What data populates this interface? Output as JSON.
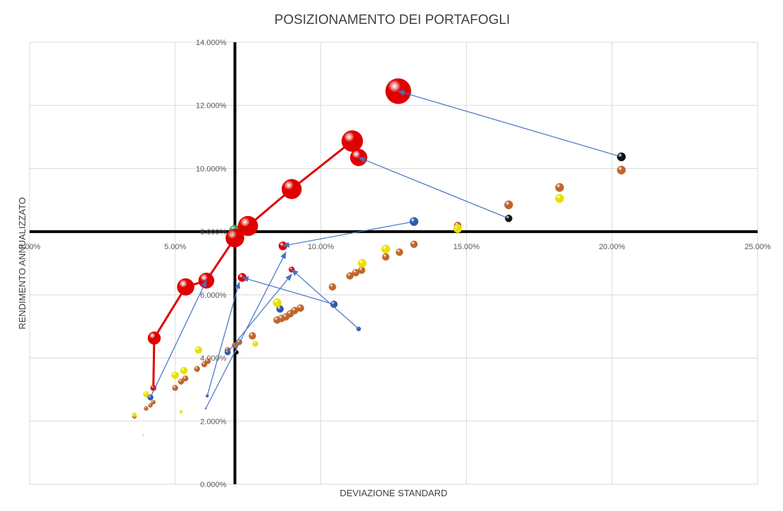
{
  "chart_data": {
    "type": "scatter",
    "title": "POSIZIONAMENTO DEI PORTAFOGLI",
    "xlabel": "DEVIAZIONE STANDARD",
    "ylabel": "RENDIMENTO ANNUALIZZATO",
    "xlim": [
      0,
      0.25
    ],
    "ylim": [
      0,
      0.14
    ],
    "x_ticks": [
      0.0,
      0.05,
      0.1,
      0.15,
      0.2,
      0.25
    ],
    "x_tick_labels": [
      "0.00%",
      "5.00%",
      "10.00%",
      "15.00%",
      "20.00%",
      "25.00%"
    ],
    "y_ticks": [
      0.0,
      0.02,
      0.04,
      0.06,
      0.08,
      0.1,
      0.12,
      0.14
    ],
    "y_tick_labels": [
      "0.000%",
      "2.000%",
      "4.000%",
      "6.000%",
      "8.000%",
      "10.000%",
      "12.000%",
      "14.000%"
    ],
    "reference_lines": {
      "x": 0.0705,
      "y": 0.08
    },
    "grid": true,
    "legend": "none",
    "colors": {
      "red": "#e00000",
      "orange": "#c0662a",
      "yellow": "#e8e000",
      "blue": "#2f5aa8",
      "black": "#111111",
      "green": "#2ea84a",
      "arrow": "#4472c4",
      "frontier_line": "#e00000"
    },
    "series": [
      {
        "color_key": "red",
        "points": [
          {
            "x": 0.0425,
            "y": 0.0305,
            "r": 4
          },
          {
            "x": 0.0428,
            "y": 0.0463,
            "r": 9
          },
          {
            "x": 0.0536,
            "y": 0.0625,
            "r": 12
          },
          {
            "x": 0.0607,
            "y": 0.0645,
            "r": 11
          },
          {
            "x": 0.0705,
            "y": 0.078,
            "r": 13
          },
          {
            "x": 0.075,
            "y": 0.0818,
            "r": 14
          },
          {
            "x": 0.09,
            "y": 0.0935,
            "r": 14
          },
          {
            "x": 0.1108,
            "y": 0.1087,
            "r": 15
          },
          {
            "x": 0.113,
            "y": 0.1035,
            "r": 12
          },
          {
            "x": 0.1266,
            "y": 0.1245,
            "r": 18
          },
          {
            "x": 0.073,
            "y": 0.0655,
            "r": 6
          },
          {
            "x": 0.087,
            "y": 0.0755,
            "r": 6
          },
          {
            "x": 0.09,
            "y": 0.068,
            "r": 4
          }
        ]
      },
      {
        "color_key": "green",
        "points": [
          {
            "x": 0.0705,
            "y": 0.0803,
            "r": 8
          }
        ]
      },
      {
        "color_key": "orange",
        "points": [
          {
            "x": 0.036,
            "y": 0.0215,
            "r": 3
          },
          {
            "x": 0.04,
            "y": 0.024,
            "r": 3
          },
          {
            "x": 0.0415,
            "y": 0.025,
            "r": 3
          },
          {
            "x": 0.0425,
            "y": 0.026,
            "r": 3
          },
          {
            "x": 0.05,
            "y": 0.0305,
            "r": 4
          },
          {
            "x": 0.052,
            "y": 0.0325,
            "r": 4
          },
          {
            "x": 0.0535,
            "y": 0.0335,
            "r": 4
          },
          {
            "x": 0.0575,
            "y": 0.0365,
            "r": 4
          },
          {
            "x": 0.06,
            "y": 0.038,
            "r": 4
          },
          {
            "x": 0.0612,
            "y": 0.039,
            "r": 4
          },
          {
            "x": 0.068,
            "y": 0.0425,
            "r": 4
          },
          {
            "x": 0.0705,
            "y": 0.044,
            "r": 4
          },
          {
            "x": 0.072,
            "y": 0.045,
            "r": 4
          },
          {
            "x": 0.0765,
            "y": 0.047,
            "r": 5
          },
          {
            "x": 0.085,
            "y": 0.052,
            "r": 5
          },
          {
            "x": 0.0865,
            "y": 0.0525,
            "r": 5
          },
          {
            "x": 0.088,
            "y": 0.053,
            "r": 5
          },
          {
            "x": 0.0895,
            "y": 0.054,
            "r": 5
          },
          {
            "x": 0.091,
            "y": 0.055,
            "r": 5
          },
          {
            "x": 0.093,
            "y": 0.0558,
            "r": 5
          },
          {
            "x": 0.104,
            "y": 0.0625,
            "r": 5
          },
          {
            "x": 0.11,
            "y": 0.066,
            "r": 5
          },
          {
            "x": 0.112,
            "y": 0.067,
            "r": 5
          },
          {
            "x": 0.114,
            "y": 0.0678,
            "r": 5
          },
          {
            "x": 0.1223,
            "y": 0.072,
            "r": 5
          },
          {
            "x": 0.127,
            "y": 0.0735,
            "r": 5
          },
          {
            "x": 0.132,
            "y": 0.076,
            "r": 5
          },
          {
            "x": 0.147,
            "y": 0.082,
            "r": 5
          },
          {
            "x": 0.1645,
            "y": 0.0885,
            "r": 6
          },
          {
            "x": 0.182,
            "y": 0.094,
            "r": 6
          },
          {
            "x": 0.2032,
            "y": 0.0995,
            "r": 6
          }
        ]
      },
      {
        "color_key": "yellow",
        "points": [
          {
            "x": 0.036,
            "y": 0.022,
            "r": 3
          },
          {
            "x": 0.039,
            "y": 0.0155,
            "r": 1
          },
          {
            "x": 0.04,
            "y": 0.0285,
            "r": 4
          },
          {
            "x": 0.05,
            "y": 0.0345,
            "r": 5
          },
          {
            "x": 0.052,
            "y": 0.023,
            "r": 2
          },
          {
            "x": 0.053,
            "y": 0.036,
            "r": 5
          },
          {
            "x": 0.058,
            "y": 0.0425,
            "r": 5
          },
          {
            "x": 0.0775,
            "y": 0.0445,
            "r": 4
          },
          {
            "x": 0.085,
            "y": 0.0575,
            "r": 6
          },
          {
            "x": 0.1142,
            "y": 0.07,
            "r": 6
          },
          {
            "x": 0.1223,
            "y": 0.0745,
            "r": 6
          },
          {
            "x": 0.147,
            "y": 0.081,
            "r": 6
          },
          {
            "x": 0.182,
            "y": 0.0905,
            "r": 6
          }
        ]
      },
      {
        "color_key": "blue",
        "points": [
          {
            "x": 0.0415,
            "y": 0.0275,
            "r": 4
          },
          {
            "x": 0.061,
            "y": 0.028,
            "r": 2
          },
          {
            "x": 0.0605,
            "y": 0.024,
            "r": 1
          },
          {
            "x": 0.068,
            "y": 0.0418,
            "r": 4
          },
          {
            "x": 0.086,
            "y": 0.0555,
            "r": 5
          },
          {
            "x": 0.1045,
            "y": 0.057,
            "r": 5
          },
          {
            "x": 0.113,
            "y": 0.0492,
            "r": 3
          },
          {
            "x": 0.132,
            "y": 0.0832,
            "r": 6
          }
        ]
      },
      {
        "color_key": "black",
        "points": [
          {
            "x": 0.071,
            "y": 0.0418,
            "r": 3
          },
          {
            "x": 0.1645,
            "y": 0.0842,
            "r": 5
          },
          {
            "x": 0.2032,
            "y": 0.1037,
            "r": 6
          }
        ]
      }
    ],
    "frontier_line": [
      {
        "x": 0.0425,
        "y": 0.0305
      },
      {
        "x": 0.0428,
        "y": 0.0463
      },
      {
        "x": 0.0536,
        "y": 0.0625
      },
      {
        "x": 0.0607,
        "y": 0.0645
      },
      {
        "x": 0.0705,
        "y": 0.078
      },
      {
        "x": 0.075,
        "y": 0.0818
      },
      {
        "x": 0.09,
        "y": 0.0935
      },
      {
        "x": 0.1108,
        "y": 0.1087
      }
    ],
    "arrows": [
      {
        "from": [
          0.2032,
          0.1037
        ],
        "to": [
          0.1266,
          0.1245
        ]
      },
      {
        "from": [
          0.1645,
          0.0842
        ],
        "to": [
          0.113,
          0.1035
        ]
      },
      {
        "from": [
          0.132,
          0.0832
        ],
        "to": [
          0.087,
          0.0755
        ]
      },
      {
        "from": [
          0.1045,
          0.057
        ],
        "to": [
          0.073,
          0.0655
        ]
      },
      {
        "from": [
          0.113,
          0.0492
        ],
        "to": [
          0.09,
          0.068
        ]
      },
      {
        "from": [
          0.0415,
          0.0275
        ],
        "to": [
          0.0607,
          0.0645
        ]
      },
      {
        "from": [
          0.061,
          0.028
        ],
        "to": [
          0.072,
          0.064
        ]
      },
      {
        "from": [
          0.0605,
          0.024
        ],
        "to": [
          0.088,
          0.0735
        ]
      },
      {
        "from": [
          0.068,
          0.0418
        ],
        "to": [
          0.09,
          0.0665
        ]
      }
    ]
  }
}
